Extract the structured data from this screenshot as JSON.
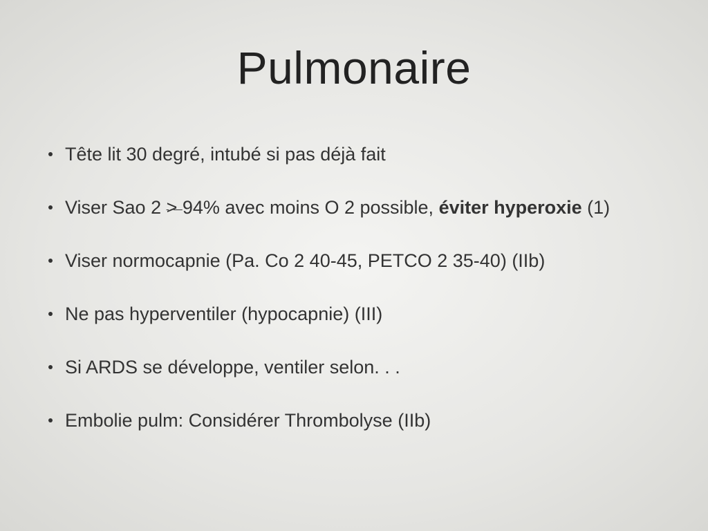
{
  "title": "Pulmonaire",
  "bullets": [
    {
      "parts": [
        {
          "text": "Tête lit 30 degré, intubé si pas déjà fait",
          "bold": false
        }
      ]
    },
    {
      "parts": [
        {
          "text": "Viser Sao 2 ",
          "bold": false
        },
        {
          "text": "> ",
          "bold": false,
          "gte": true
        },
        {
          "text": "94% avec moins O 2 possible, ",
          "bold": false
        },
        {
          "text": "éviter hyperoxie",
          "bold": true
        },
        {
          "text": " (1)",
          "bold": false
        }
      ]
    },
    {
      "parts": [
        {
          "text": "Viser normocapnie (Pa. Co 2 40-45,  PETCO 2 35-40) (IIb)",
          "bold": false
        }
      ]
    },
    {
      "parts": [
        {
          "text": "Ne pas hyperventiler (hypocapnie) (III)",
          "bold": false
        }
      ]
    },
    {
      "parts": [
        {
          "text": "Si ARDS se développe, ventiler selon. . .",
          "bold": false
        }
      ]
    },
    {
      "parts": [
        {
          "text": "Embolie pulm: Considérer Thrombolyse (IIb)",
          "bold": false
        }
      ]
    }
  ]
}
